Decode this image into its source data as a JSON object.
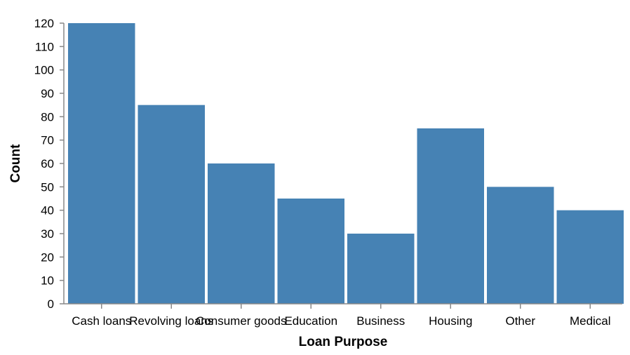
{
  "chart_data": {
    "type": "bar",
    "xlabel": "Loan Purpose",
    "ylabel": "Count",
    "categories": [
      "Cash loans",
      "Revolving loans",
      "Consumer goods",
      "Education",
      "Business",
      "Housing",
      "Other",
      "Medical"
    ],
    "values": [
      120,
      85,
      60,
      45,
      30,
      75,
      50,
      40
    ],
    "ylim": [
      0,
      120
    ],
    "yticks": [
      0,
      10,
      20,
      30,
      40,
      50,
      60,
      70,
      80,
      90,
      100,
      110,
      120
    ],
    "bar_color": "#4682b4",
    "grid": false
  }
}
